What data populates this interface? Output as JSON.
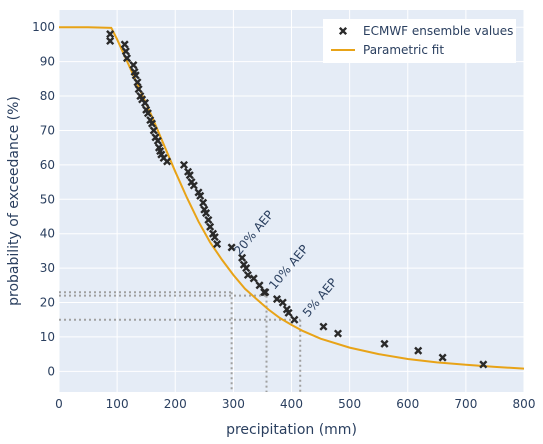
{
  "chart_data": {
    "type": "scatter",
    "xlabel": "precipitation (mm)",
    "ylabel": "probability of exceedance (%)",
    "xlim": [
      0,
      800
    ],
    "ylim": [
      -6,
      105
    ],
    "x_ticks": [
      0,
      100,
      200,
      300,
      400,
      500,
      600,
      700,
      800
    ],
    "y_ticks": [
      0,
      10,
      20,
      30,
      40,
      50,
      60,
      70,
      80,
      90,
      100
    ],
    "grid": true,
    "legend_position": "top-right",
    "colors": {
      "plot_bg": "#e5ecf6",
      "grid": "#ffffff",
      "marker": "#2a2a2a",
      "fit": "#e8a317",
      "guide": "#a0a0a0"
    },
    "series": [
      {
        "name": "ECMWF ensemble values",
        "marker": "x",
        "x": [
          88,
          88,
          113,
          115,
          117,
          128,
          130,
          132,
          135,
          137,
          140,
          143,
          148,
          150,
          153,
          157,
          160,
          163,
          166,
          170,
          172,
          174,
          176,
          180,
          186,
          215,
          222,
          225,
          228,
          232,
          240,
          243,
          248,
          250,
          253,
          257,
          260,
          265,
          268,
          272,
          297,
          315,
          318,
          322,
          325,
          335,
          345,
          353,
          355,
          375,
          385,
          392,
          395,
          405,
          455,
          480,
          560,
          618,
          660,
          730
        ],
        "y": [
          98,
          96,
          95,
          93,
          91,
          89,
          87,
          86,
          84,
          82,
          80,
          79,
          78,
          76,
          75,
          73,
          72,
          70,
          68,
          67,
          65,
          64,
          63,
          62,
          61,
          60,
          58,
          57,
          55,
          54,
          52,
          51,
          49,
          47,
          46,
          44,
          42,
          40,
          39,
          37,
          36,
          33,
          31,
          30,
          28,
          27,
          25,
          23,
          23,
          21,
          20,
          18,
          17,
          15,
          13,
          11,
          8,
          6,
          4,
          2
        ]
      },
      {
        "name": "Parametric fit",
        "mode": "line",
        "x": [
          0,
          50,
          90,
          100,
          120,
          140,
          160,
          180,
          200,
          220,
          240,
          260,
          280,
          300,
          320,
          340,
          360,
          380,
          400,
          420,
          450,
          500,
          550,
          600,
          650,
          700,
          750,
          800
        ],
        "y": [
          100,
          100,
          99.8,
          96.5,
          89,
          81.5,
          74,
          66,
          58,
          50.5,
          43.5,
          37.5,
          32.5,
          28,
          24,
          21,
          18,
          15.5,
          13.5,
          11.7,
          9.5,
          6.9,
          5,
          3.6,
          2.6,
          1.9,
          1.3,
          0.8
        ]
      }
    ],
    "annotations": [
      {
        "label": "20% AEP",
        "x": 297,
        "y": 33
      },
      {
        "label": "10% AEP",
        "x": 357,
        "y": 23
      },
      {
        "label": "5% AEP",
        "x": 415,
        "y": 15
      }
    ]
  }
}
